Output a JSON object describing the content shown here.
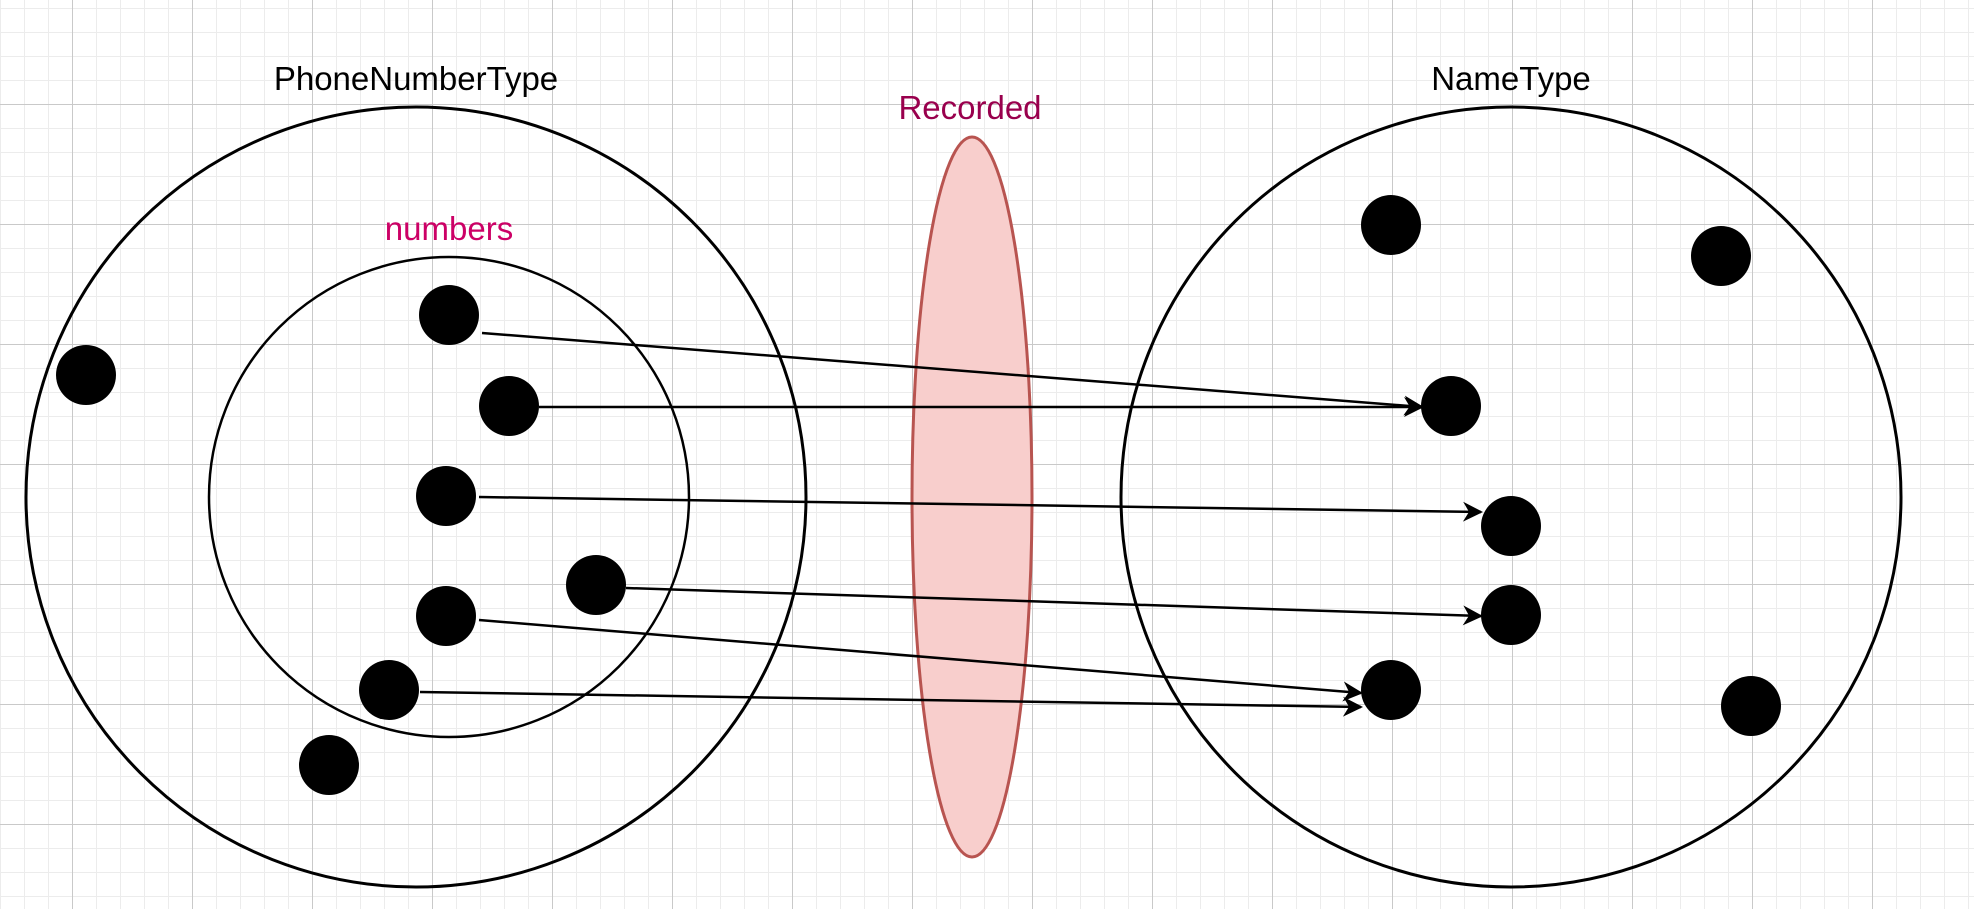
{
  "diagram": {
    "sets": {
      "phone_number_type": "PhoneNumberType",
      "numbers": "numbers",
      "name_type": "NameType"
    },
    "relation": "Recorded"
  },
  "colors": {
    "stroke": "#000000",
    "numbers_label": "#cc0066",
    "relation_label": "#99004d",
    "relation_fill": "#f8cecc",
    "relation_stroke": "#b85450"
  }
}
